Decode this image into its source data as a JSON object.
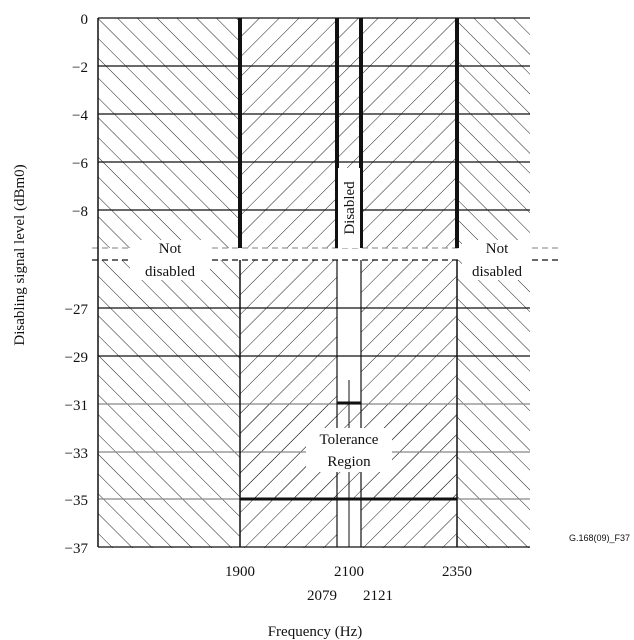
{
  "chart_data": {
    "type": "area",
    "title": "",
    "xlabel": "Frequency (Hz)",
    "ylabel": "Disabling signal level (dBm0)",
    "figure_ref": "G.168(09)_F37",
    "y_ticks_upper": [
      "0",
      "−2",
      "−4",
      "−6",
      "−8"
    ],
    "y_ticks_lower": [
      "−27",
      "−29",
      "−31",
      "−33",
      "−35",
      "−37"
    ],
    "x_ticks_row1": [
      "1900",
      "2100",
      "2350"
    ],
    "x_ticks_row2": [
      "2079",
      "2121"
    ],
    "x_tick_values": [
      1900,
      2079,
      2100,
      2121,
      2350
    ],
    "y_break": "axis break between −8 and −27",
    "regions": [
      {
        "name": "not-disabled-left",
        "label_line1": "Not",
        "label_line2": "disabled",
        "x_max": 1900
      },
      {
        "name": "disabled",
        "label": "Disabled",
        "x_range": [
          2079,
          2121
        ]
      },
      {
        "name": "tolerance",
        "label_line1": "Tolerance",
        "label_line2": "Region",
        "x_range": [
          1900,
          2350
        ],
        "y_range": [
          -35,
          -31
        ]
      },
      {
        "name": "not-disabled-right",
        "label_line1": "Not",
        "label_line2": "disabled",
        "x_min": 2350
      }
    ],
    "disabled_region_bottom": -31,
    "tolerance_floor": -35,
    "grid": true,
    "hatch": "diagonal"
  }
}
